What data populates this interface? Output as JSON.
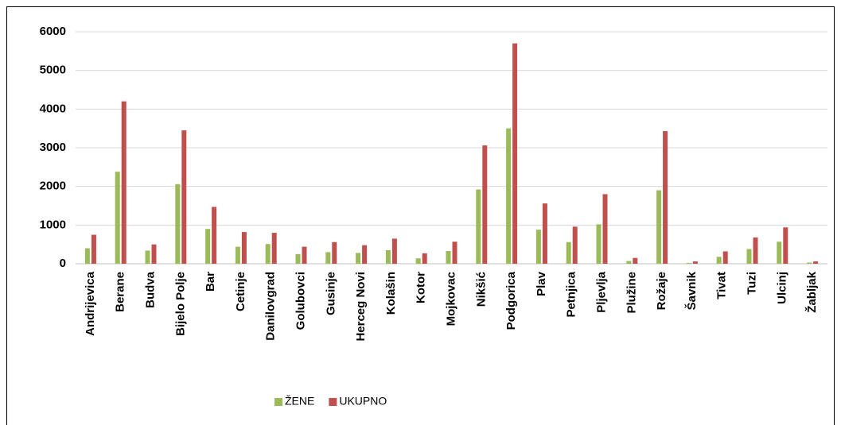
{
  "chart_data": {
    "type": "bar",
    "categories": [
      "Andrijevica",
      "Berane",
      "Budva",
      "Bijelo Polje",
      "Bar",
      "Cetinje",
      "Danilovgrad",
      "Golubovci",
      "Gusinje",
      "Herceg Novi",
      "Kolašin",
      "Kotor",
      "Mojkovac",
      "Nikšić",
      "Podgorica",
      "Plav",
      "Petnjica",
      "Pljevlja",
      "Plužine",
      "Rožaje",
      "Šavnik",
      "Tivat",
      "Tuzi",
      "Ulcinj",
      "Žabljak"
    ],
    "series": [
      {
        "name": "ŽENE",
        "color": "#9bbb59",
        "values": [
          400,
          2380,
          340,
          2060,
          900,
          440,
          510,
          250,
          300,
          280,
          350,
          140,
          330,
          1920,
          3500,
          880,
          560,
          1020,
          70,
          1900,
          20,
          180,
          380,
          570,
          30
        ]
      },
      {
        "name": "UKUPNO",
        "color": "#c0504d",
        "values": [
          750,
          4200,
          500,
          3450,
          1470,
          820,
          800,
          440,
          560,
          480,
          650,
          270,
          570,
          3060,
          5700,
          1560,
          960,
          1800,
          150,
          3430,
          60,
          320,
          680,
          940,
          60
        ]
      }
    ],
    "ylim": [
      0,
      6000
    ],
    "yticks": [
      0,
      1000,
      2000,
      3000,
      4000,
      5000,
      6000
    ],
    "grid": true,
    "legend": "bottom"
  }
}
